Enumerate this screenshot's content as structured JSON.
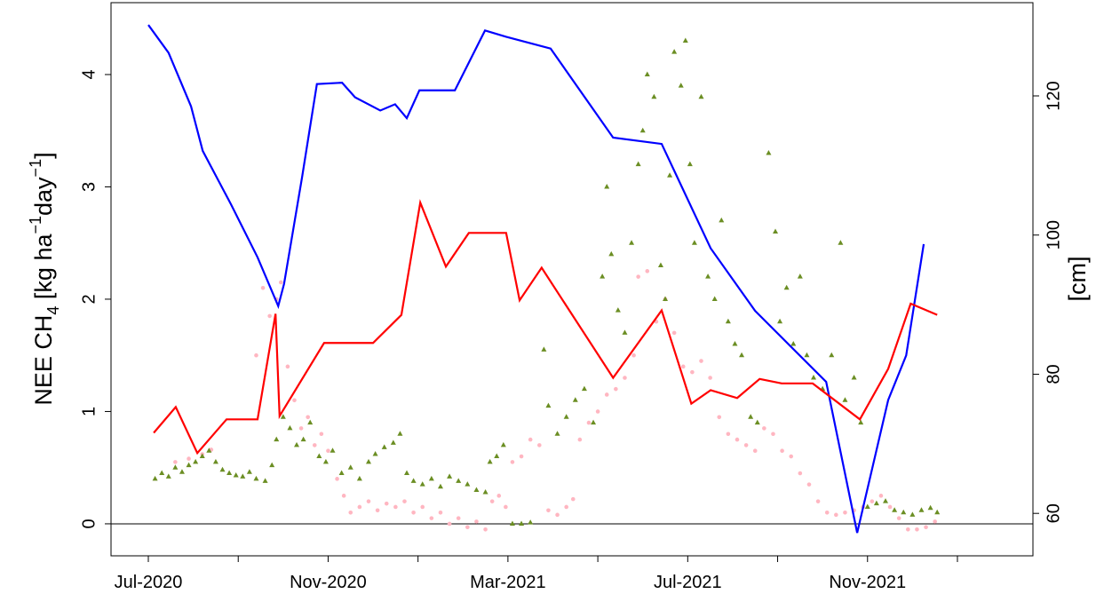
{
  "chart_data": {
    "type": "line",
    "ylabel_parts": [
      "NEE CH",
      "4",
      "  [kg ha",
      "−1",
      "day",
      "−1",
      "]"
    ],
    "y2label": "[cm]",
    "xlim": [
      -0.83,
      19.68
    ],
    "xticks": [
      {
        "value": 0,
        "label": "Jul-2020"
      },
      {
        "value": 2,
        "label": null
      },
      {
        "value": 4,
        "label": "Nov-2020"
      },
      {
        "value": 6,
        "label": null
      },
      {
        "value": 8,
        "label": "Mar-2021"
      },
      {
        "value": 10,
        "label": null
      },
      {
        "value": 12,
        "label": "Jul-2021"
      },
      {
        "value": 14,
        "label": null
      },
      {
        "value": 16,
        "label": "Nov-2021"
      },
      {
        "value": 18,
        "label": null
      }
    ],
    "ylim": [
      -0.285,
      4.64
    ],
    "yticks": [
      0,
      1,
      2,
      3,
      4
    ],
    "y2lim": [
      53.9,
      133.4
    ],
    "y2ticks": [
      60,
      80,
      100,
      120
    ],
    "hline": 0,
    "series": [
      {
        "type": "scatter",
        "marker": "circle",
        "color": "#ffb6c1",
        "x": [
          0.6,
          0.9,
          1.2,
          1.4,
          2.4,
          2.55,
          2.7,
          2.85,
          2.95,
          3.1,
          3.25,
          3.4,
          3.55,
          3.7,
          3.85,
          4.0,
          4.2,
          4.35,
          4.5,
          4.7,
          4.9,
          5.1,
          5.3,
          5.5,
          5.7,
          5.9,
          6.1,
          6.3,
          6.5,
          6.7,
          6.9,
          7.1,
          7.3,
          7.5,
          7.65,
          7.8,
          7.95,
          8.1,
          8.3,
          8.5,
          8.7,
          8.9,
          9.1,
          9.3,
          9.45,
          9.6,
          9.8,
          10.0,
          10.2,
          10.4,
          10.6,
          10.8,
          10.9,
          11.1,
          11.3,
          11.5,
          11.7,
          11.9,
          12.1,
          12.3,
          12.5,
          12.7,
          12.9,
          13.1,
          13.3,
          13.5,
          13.7,
          13.9,
          14.1,
          14.3,
          14.5,
          14.7,
          14.9,
          15.1,
          15.3,
          15.5,
          15.7,
          15.9,
          16.1,
          16.3,
          16.5,
          16.7,
          16.9,
          17.1,
          17.3,
          17.5
        ],
        "values": [
          0.55,
          0.58,
          0.62,
          0.66,
          1.5,
          2.1,
          1.85,
          2.0,
          2.15,
          1.4,
          1.1,
          0.85,
          0.95,
          0.7,
          0.8,
          0.65,
          0.4,
          0.25,
          0.1,
          0.15,
          0.2,
          0.12,
          0.18,
          0.15,
          0.2,
          0.1,
          0.15,
          0.05,
          0.1,
          0.0,
          0.05,
          -0.03,
          0.02,
          -0.05,
          0.2,
          0.25,
          0.15,
          0.55,
          0.6,
          0.75,
          0.7,
          0.12,
          0.08,
          0.15,
          0.22,
          0.75,
          0.9,
          1.0,
          1.15,
          1.2,
          1.3,
          1.5,
          2.2,
          2.25,
          1.8,
          2.0,
          1.7,
          1.4,
          1.35,
          1.45,
          1.3,
          0.95,
          0.8,
          0.75,
          0.7,
          0.65,
          0.85,
          0.8,
          0.65,
          0.6,
          0.45,
          0.35,
          0.2,
          0.1,
          0.08,
          0.1,
          0.12,
          0.15,
          0.2,
          0.25,
          0.15,
          0.05,
          -0.05,
          -0.05,
          -0.03,
          0.02
        ]
      },
      {
        "type": "scatter",
        "marker": "triangle",
        "color": "#6b8e23",
        "x": [
          0.15,
          0.3,
          0.45,
          0.6,
          0.75,
          0.9,
          1.05,
          1.2,
          1.35,
          1.5,
          1.65,
          1.8,
          1.95,
          2.1,
          2.25,
          2.4,
          2.6,
          2.75,
          2.85,
          3.0,
          3.15,
          3.3,
          3.45,
          3.6,
          3.8,
          3.95,
          4.1,
          4.3,
          4.5,
          4.7,
          4.9,
          5.05,
          5.25,
          5.45,
          5.6,
          5.75,
          5.9,
          6.1,
          6.3,
          6.5,
          6.7,
          6.9,
          7.1,
          7.3,
          7.5,
          7.6,
          7.75,
          7.9,
          8.1,
          8.3,
          8.5,
          8.8,
          8.9,
          9.1,
          9.3,
          9.5,
          9.7,
          9.9,
          10.1,
          10.2,
          10.3,
          10.45,
          10.6,
          10.75,
          10.9,
          11.0,
          11.1,
          11.25,
          11.4,
          11.5,
          11.6,
          11.7,
          11.85,
          11.95,
          12.05,
          12.15,
          12.3,
          12.45,
          12.6,
          12.75,
          12.9,
          13.05,
          13.2,
          13.4,
          13.55,
          13.8,
          13.95,
          14.05,
          14.2,
          14.35,
          14.5,
          14.65,
          14.8,
          15.0,
          15.2,
          15.4,
          15.5,
          15.7,
          15.85,
          16.0,
          16.2,
          16.4,
          16.6,
          16.8,
          17.0,
          17.2,
          17.4,
          17.55
        ],
        "values": [
          0.4,
          0.45,
          0.42,
          0.5,
          0.46,
          0.52,
          0.55,
          0.6,
          0.65,
          0.55,
          0.48,
          0.45,
          0.43,
          0.42,
          0.46,
          0.4,
          0.38,
          0.52,
          0.75,
          0.95,
          0.85,
          0.7,
          0.75,
          0.9,
          0.6,
          0.55,
          0.65,
          0.45,
          0.5,
          0.4,
          0.55,
          0.62,
          0.68,
          0.72,
          0.8,
          0.45,
          0.38,
          0.35,
          0.4,
          0.33,
          0.42,
          0.38,
          0.35,
          0.3,
          0.28,
          0.55,
          0.6,
          0.7,
          0.0,
          0.0,
          0.01,
          1.55,
          1.05,
          0.8,
          0.95,
          1.1,
          1.2,
          0.9,
          2.2,
          3.0,
          2.4,
          1.9,
          1.7,
          2.5,
          3.2,
          3.5,
          4.0,
          3.8,
          2.3,
          2.0,
          3.1,
          4.2,
          3.9,
          4.3,
          3.2,
          2.5,
          3.8,
          2.2,
          2.0,
          2.7,
          1.8,
          1.6,
          1.5,
          0.95,
          0.9,
          3.3,
          2.6,
          1.8,
          2.1,
          1.6,
          2.2,
          1.5,
          1.3,
          1.2,
          1.5,
          2.5,
          1.1,
          1.3,
          0.9,
          0.15,
          0.18,
          0.2,
          0.12,
          0.1,
          0.08,
          0.12,
          0.14,
          0.1
        ]
      },
      {
        "type": "line",
        "color": "#0000ff",
        "axis": "y2",
        "x": [
          0,
          0.45,
          0.95,
          1.21,
          1.84,
          2.43,
          2.89,
          3.02,
          3.42,
          3.75,
          4.31,
          4.6,
          5.16,
          5.49,
          5.75,
          6.03,
          6.82,
          7.49,
          7.96,
          8.95,
          10.34,
          11.42,
          12.51,
          13.5,
          15.08,
          15.77,
          16.46,
          16.86,
          17.25
        ],
        "values": [
          130.2,
          126.2,
          118.5,
          112.1,
          104.4,
          96.8,
          89.8,
          93.0,
          108.3,
          121.7,
          121.9,
          119.8,
          117.9,
          118.8,
          116.8,
          120.8,
          120.8,
          129.4,
          128.5,
          126.8,
          114.0,
          113.1,
          98.1,
          89.1,
          78.9,
          57.2,
          76.3,
          82.7,
          98.7
        ]
      },
      {
        "type": "line",
        "color": "#ff0000",
        "x": [
          0.12,
          0.61,
          1.09,
          1.74,
          2.43,
          2.83,
          2.92,
          3.91,
          5.0,
          5.63,
          6.05,
          6.62,
          7.13,
          7.96,
          8.26,
          8.75,
          10.34,
          11.42,
          12.08,
          12.51,
          13.1,
          13.6,
          14.09,
          14.78,
          15.83,
          16.46,
          16.96,
          17.55
        ],
        "values": [
          0.81,
          1.04,
          0.63,
          0.93,
          0.93,
          1.87,
          0.96,
          1.61,
          1.61,
          1.86,
          2.86,
          2.29,
          2.59,
          2.59,
          1.99,
          2.28,
          1.3,
          1.9,
          1.07,
          1.19,
          1.12,
          1.29,
          1.25,
          1.25,
          0.93,
          1.38,
          1.96,
          1.86
        ]
      }
    ]
  }
}
